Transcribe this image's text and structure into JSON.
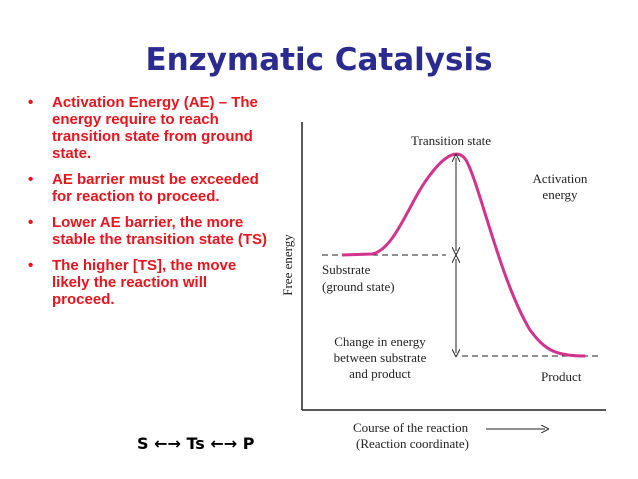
{
  "title": "Enzymatic Catalysis",
  "bullets": [
    "Activation Energy (AE) – The energy require to reach transition state from ground state.",
    "AE barrier must be exceeded for reaction to proceed.",
    "Lower AE barrier, the more stable the transition state (TS)",
    "The higher [TS], the move likely the reaction will proceed."
  ],
  "diagram": {
    "y_axis_label": "Free energy",
    "x_axis_label": [
      "Course of the reaction",
      "(Reaction coordinate)"
    ],
    "transition_state": "Transition state",
    "activation_energy": [
      "Activation",
      "energy"
    ],
    "substrate": [
      "Substrate",
      "(ground state)"
    ],
    "change_in_energy": [
      "Change in energy",
      "between substrate",
      "and product"
    ],
    "product": "Product"
  },
  "footer": "S ←→ Ts ←→ P"
}
